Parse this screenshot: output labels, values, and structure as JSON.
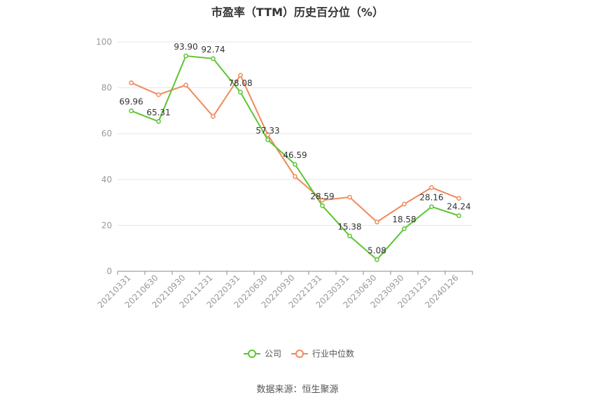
{
  "chart_data": {
    "type": "line",
    "title": "市盈率（TTM）历史百分位（%）",
    "categories": [
      "20210331",
      "20210630",
      "20210930",
      "20211231",
      "20220331",
      "20220630",
      "20220930",
      "20221231",
      "20230331",
      "20230630",
      "20230930",
      "20231231",
      "20240126"
    ],
    "ylim": [
      0,
      100
    ],
    "yticks": [
      0,
      20,
      40,
      60,
      80,
      100
    ],
    "grid": true,
    "legend_position": "bottom",
    "series": [
      {
        "name": "公司",
        "color": "#5cc531",
        "values": [
          69.96,
          65.31,
          93.9,
          92.74,
          78.08,
          57.33,
          46.59,
          28.59,
          15.38,
          5.08,
          18.58,
          28.16,
          24.24
        ],
        "labels": [
          "69.96",
          "65.31",
          "93.90",
          "92.74",
          "78.08",
          "57.33",
          "46.59",
          "28.59",
          "15.38",
          "5.08",
          "18.58",
          "28.16",
          "24.24"
        ]
      },
      {
        "name": "行业中位数",
        "color": "#f0895a",
        "values": [
          82.2,
          77.0,
          81.2,
          67.5,
          85.5,
          59.5,
          41.3,
          31.0,
          32.3,
          21.5,
          29.3,
          36.5,
          31.8
        ]
      }
    ]
  },
  "source": "数据来源：恒生聚源"
}
